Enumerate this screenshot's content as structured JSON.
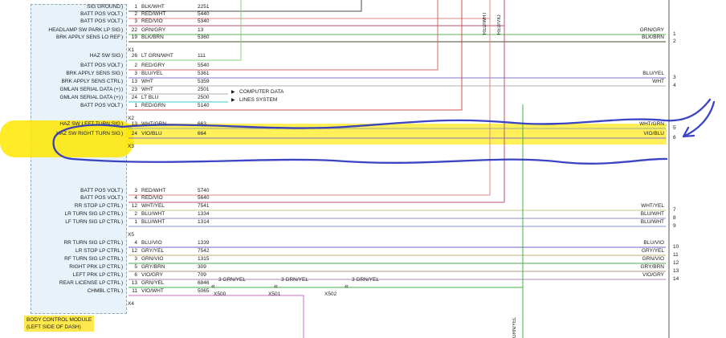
{
  "diagram": {
    "module_name": "BODY CONTROL MODULE",
    "module_location": "(LEFT SIDE OF DASH)",
    "bus_notes": {
      "computer_data": "COMPUTER DATA",
      "lines_system": "LINES SYSTEM"
    },
    "vertical_wire_labels": {
      "top_left_wire": "RED/WHT",
      "top_right_wire": "RED/VIO",
      "bottom_wire": "GRN/YEL"
    },
    "highlight_color": "#ffe800",
    "annotation_ink_color": "#2a35c0",
    "groups": [
      {
        "connector": "X1",
        "rows": [
          {
            "label": "SIG GROUND",
            "pin": "1",
            "color": "BLK/WHT",
            "circuit": "2251",
            "hex": "#4a4a4a"
          },
          {
            "label": "BATT POS VOLT",
            "pin": "2",
            "color": "RED/WHT",
            "circuit": "5440",
            "hex": "#e08585"
          },
          {
            "label": "BATT POS VOLT",
            "pin": "3",
            "color": "RED/VIO",
            "circuit": "5340",
            "hex": "#b55570"
          },
          {
            "label": "HEADLAMP SW PARK LP SIG",
            "pin": "22",
            "color": "GRN/GRY",
            "circuit": "13",
            "hex": "#58b058"
          },
          {
            "label": "BRK APPLY SENS LO REF",
            "pin": "19",
            "color": "BLK/BRN",
            "circuit": "5360",
            "hex": "#4f4636"
          }
        ]
      },
      {
        "connector": "X2",
        "rows": [
          {
            "label": "HAZ SW SIG",
            "pin": "26",
            "color": "LT GRN/WHT",
            "circuit": "111",
            "hex": "#7cd67c"
          },
          {
            "label": "BATT POS VOLT",
            "pin": "2",
            "color": "RED/GRY",
            "circuit": "5540",
            "hex": "#d06868"
          },
          {
            "label": "BRK APPLY SENS SIG",
            "pin": "3",
            "color": "BLU/YEL",
            "circuit": "5361",
            "hex": "#7878c8"
          },
          {
            "label": "BRK APPLY SENS CTRL",
            "pin": "13",
            "color": "WHT",
            "circuit": "5359",
            "hex": "#b0b0b0"
          },
          {
            "label": "GMLAN SERIAL DATA (+)",
            "pin": "23",
            "color": "WHT",
            "circuit": "2501",
            "hex": "#b0b0b0"
          },
          {
            "label": "GMLAN SERIAL DATA (+)",
            "pin": "24",
            "color": "LT BLU",
            "circuit": "2500",
            "hex": "#3cc8c8"
          },
          {
            "label": "BATT POS VOLT",
            "pin": "1",
            "color": "RED/GRN",
            "circuit": "5140",
            "hex": "#cc5050"
          }
        ]
      },
      {
        "connector": "X3",
        "rows": [
          {
            "label": "HAZ SW LEFT TURN SIG",
            "pin": "13",
            "color": "WHT/GRN",
            "circuit": "663",
            "hex": "#93b093",
            "highlight": true
          },
          {
            "label": "HAZ SW RIGHT TURN SIG",
            "pin": "24",
            "color": "VIO/BLU",
            "circuit": "664",
            "hex": "#8070cc",
            "highlight": true
          }
        ]
      },
      {
        "connector": "X5",
        "rows": [
          {
            "label": "BATT POS VOLT",
            "pin": "3",
            "color": "RED/WHT",
            "circuit": "5740",
            "hex": "#e08585"
          },
          {
            "label": "BATT POS VOLT",
            "pin": "4",
            "color": "RED/VIO",
            "circuit": "5640",
            "hex": "#b55570"
          },
          {
            "label": "RR STOP LP CTRL",
            "pin": "12",
            "color": "WHT/YEL",
            "circuit": "7541",
            "hex": "#c8c880"
          },
          {
            "label": "LR TURN SIG LP CTRL",
            "pin": "2",
            "color": "BLU/WHT",
            "circuit": "1334",
            "hex": "#8890d0"
          },
          {
            "label": "LF TURN SIG LP CTRL",
            "pin": "1",
            "color": "BLU/WHT",
            "circuit": "1314",
            "hex": "#8890d0"
          }
        ]
      },
      {
        "connector": "X4",
        "rows": [
          {
            "label": "RR TURN SIG LP CTRL",
            "pin": "4",
            "color": "BLU/VIO",
            "circuit": "1339",
            "hex": "#7060c0"
          },
          {
            "label": "LR STOP LP CTRL",
            "pin": "12",
            "color": "GRY/YEL",
            "circuit": "7542",
            "hex": "#b8b070"
          },
          {
            "label": "RF TURN SIG LP CTRL",
            "pin": "3",
            "color": "GRN/VIO",
            "circuit": "1315",
            "hex": "#50a850"
          },
          {
            "label": "RIGHT PRK LP CTRL",
            "pin": "5",
            "color": "GRY/BRN",
            "circuit": "309",
            "hex": "#b09878"
          },
          {
            "label": "LEFT PRK LP CTRL",
            "pin": "6",
            "color": "VIO/GRY",
            "circuit": "709",
            "hex": "#a888b8"
          },
          {
            "label": "REAR LICENSE LP CTRL",
            "pin": "13",
            "color": "GRN/YEL",
            "circuit": "6846",
            "hex": "#44b044"
          },
          {
            "label": "CHMBL CTRL",
            "pin": "11",
            "color": "VIO/WHT",
            "circuit": "5065",
            "hex": "#cc70cc"
          }
        ]
      }
    ],
    "right_pins": [
      {
        "label": "GRN/GRY",
        "pin": "1",
        "hex": "#58b058"
      },
      {
        "label": "BLK/BRN",
        "pin": "2",
        "hex": "#4f4636"
      },
      {
        "label": "BLU/YEL",
        "pin": "3",
        "hex": "#7878c8"
      },
      {
        "label": "WHT",
        "pin": "4",
        "hex": "#b0b0b0"
      },
      {
        "label": "WHT/GRN",
        "pin": "5",
        "hex": "#93b093"
      },
      {
        "label": "VIO/BLU",
        "pin": "6",
        "hex": "#8070cc"
      },
      {
        "label": "WHT/YEL",
        "pin": "7",
        "hex": "#c8c880"
      },
      {
        "label": "BLU/WHT",
        "pin": "8",
        "hex": "#8890d0"
      },
      {
        "label": "BLU/WHT",
        "pin": "9",
        "hex": "#8890d0"
      },
      {
        "label": "BLU/VIO",
        "pin": "10",
        "hex": "#7060c0"
      },
      {
        "label": "GRY/YEL",
        "pin": "11",
        "hex": "#b8b070"
      },
      {
        "label": "GRN/VIO",
        "pin": "12",
        "hex": "#50a850"
      },
      {
        "label": "GRY/BRN",
        "pin": "13",
        "hex": "#b09878"
      },
      {
        "label": "VIO/GRY",
        "pin": "14",
        "hex": "#a888b8"
      }
    ],
    "splices": {
      "labels": [
        "X500",
        "X501",
        "X502"
      ],
      "wire": "3  GRN/YEL"
    }
  }
}
